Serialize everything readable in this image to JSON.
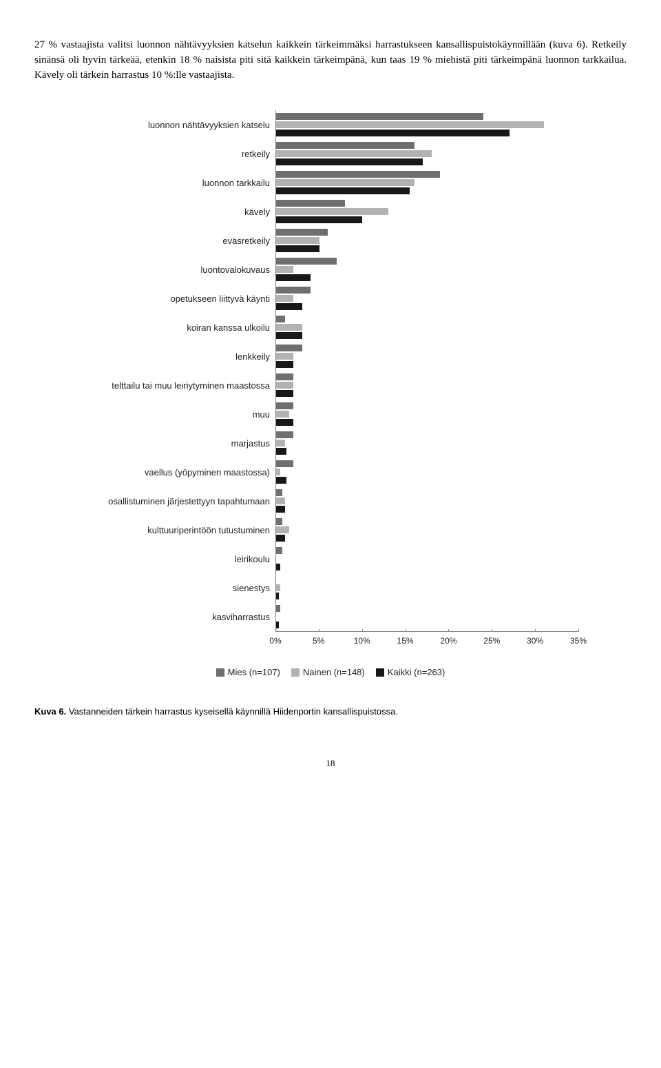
{
  "paragraph": "27 % vastaajista valitsi luonnon nähtävyyksien katselun kaikkein tärkeimmäksi harrastukseen kansallispuistokäynnillään (kuva 6). Retkeily sinänsä oli hyvin tärkeää, etenkin 18 % naisista piti sitä kaikkein tärkeimpänä, kun taas 19 % miehistä piti tärkeimpänä luonnon tarkkailua. Kävely oli tärkein harrastus 10 %:lle vastaajista.",
  "chart": {
    "type": "bar",
    "x_max": 35,
    "x_tick_step": 5,
    "x_tick_labels": [
      "0%",
      "5%",
      "10%",
      "15%",
      "20%",
      "25%",
      "30%",
      "35%"
    ],
    "series": [
      {
        "label": "Mies (n=107)",
        "color": "#6f6f6f"
      },
      {
        "label": "Nainen (n=148)",
        "color": "#b2b2b2"
      },
      {
        "label": "Kaikki (n=263)",
        "color": "#181818"
      }
    ],
    "categories": [
      {
        "label": "luonnon nähtävyyksien katselu",
        "values": [
          24,
          31,
          27
        ]
      },
      {
        "label": "retkeily",
        "values": [
          16,
          18,
          17
        ]
      },
      {
        "label": "luonnon tarkkailu",
        "values": [
          19,
          16,
          15.5
        ]
      },
      {
        "label": "kävely",
        "values": [
          8,
          13,
          10
        ]
      },
      {
        "label": "eväsretkeily",
        "values": [
          6,
          5,
          5
        ]
      },
      {
        "label": "luontovalokuvaus",
        "values": [
          7,
          2,
          4
        ]
      },
      {
        "label": "opetukseen liittyvä käynti",
        "values": [
          4,
          2,
          3
        ]
      },
      {
        "label": "koiran kanssa ulkoilu",
        "values": [
          1,
          3,
          3
        ]
      },
      {
        "label": "lenkkeily",
        "values": [
          3,
          2,
          2
        ]
      },
      {
        "label": "telttailu tai muu leiriytyminen maastossa",
        "values": [
          2,
          2,
          2
        ]
      },
      {
        "label": "muu",
        "values": [
          2,
          1.5,
          2
        ]
      },
      {
        "label": "marjastus",
        "values": [
          2,
          1,
          1.2
        ]
      },
      {
        "label": "vaellus (yöpyminen maastossa)",
        "values": [
          2,
          0.5,
          1.2
        ]
      },
      {
        "label": "osallistuminen järjestettyyn tapahtumaan",
        "values": [
          0.7,
          1,
          1
        ]
      },
      {
        "label": "kulttuuriperintöön tutustuminen",
        "values": [
          0.7,
          1.5,
          1
        ]
      },
      {
        "label": "leirikoulu",
        "values": [
          0.7,
          0,
          0.5
        ]
      },
      {
        "label": "sienestys",
        "values": [
          0,
          0.5,
          0.3
        ]
      },
      {
        "label": "kasviharrastus",
        "values": [
          0.5,
          0,
          0.3
        ]
      }
    ]
  },
  "caption_prefix": "Kuva 6.",
  "caption_text": " Vastanneiden tärkein harrastus kyseisellä käynnillä Hiidenportin kansallispuistossa.",
  "page_number": "18"
}
